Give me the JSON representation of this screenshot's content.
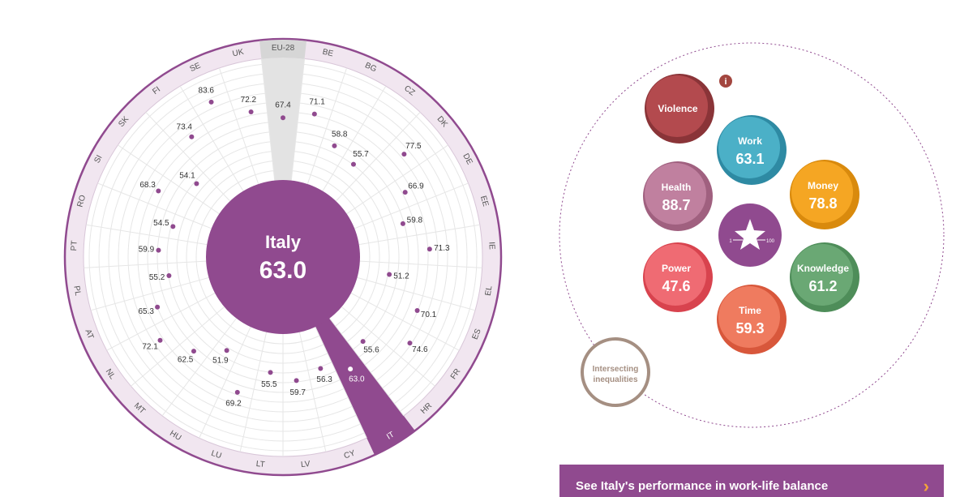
{
  "chart_data": [
    {
      "type": "radial-dot",
      "center": {
        "name": "Italy",
        "value": "63.0"
      },
      "highlight": "IT",
      "reference": "EU-28",
      "countries": [
        {
          "code": "EU-28",
          "value": 67.4
        },
        {
          "code": "BE",
          "value": 71.1
        },
        {
          "code": "BG",
          "value": 58.8
        },
        {
          "code": "CZ",
          "value": 55.7
        },
        {
          "code": "DK",
          "value": 77.5
        },
        {
          "code": "DE",
          "value": 66.9
        },
        {
          "code": "EE",
          "value": 59.8
        },
        {
          "code": "IE",
          "value": 71.3
        },
        {
          "code": "EL",
          "value": 51.2
        },
        {
          "code": "ES",
          "value": 70.1
        },
        {
          "code": "FR",
          "value": 74.6
        },
        {
          "code": "HR",
          "value": 55.6
        },
        {
          "code": "IT",
          "value": 63.0
        },
        {
          "code": "CY",
          "value": 56.3
        },
        {
          "code": "LV",
          "value": 59.7
        },
        {
          "code": "LT",
          "value": 55.5
        },
        {
          "code": "LU",
          "value": 69.2
        },
        {
          "code": "HU",
          "value": 51.9
        },
        {
          "code": "MT",
          "value": 62.5
        },
        {
          "code": "NL",
          "value": 72.1
        },
        {
          "code": "AT",
          "value": 65.3
        },
        {
          "code": "PL",
          "value": 55.2
        },
        {
          "code": "PT",
          "value": 59.9
        },
        {
          "code": "RO",
          "value": 54.5
        },
        {
          "code": "SI",
          "value": 68.3
        },
        {
          "code": "SK",
          "value": 54.1
        },
        {
          "code": "FI",
          "value": 73.4
        },
        {
          "code": "SE",
          "value": 83.6
        },
        {
          "code": "UK",
          "value": 72.2
        }
      ],
      "colors": {
        "accent": "#904a8f",
        "ring": "#f1e6f0",
        "reference": "#e3e3e3",
        "grid": "#e6e6e6"
      }
    },
    {
      "type": "bubble",
      "domains": [
        {
          "name": "Violence",
          "value": "",
          "color": "#b34a4e",
          "dark": "#8a3438"
        },
        {
          "name": "Work",
          "value": "63.1",
          "color": "#4bb0c7",
          "dark": "#2e8aa3"
        },
        {
          "name": "Health",
          "value": "88.7",
          "color": "#c0809f",
          "dark": "#a0607f"
        },
        {
          "name": "Money",
          "value": "78.8",
          "color": "#f5a623",
          "dark": "#d98a0d"
        },
        {
          "name": "Power",
          "value": "47.6",
          "color": "#ef6b73",
          "dark": "#d8434e"
        },
        {
          "name": "Knowledge",
          "value": "61.2",
          "color": "#6aa874",
          "dark": "#4e8d59"
        },
        {
          "name": "Time",
          "value": "59.3",
          "color": "#ef7b5f",
          "dark": "#d8573b"
        }
      ],
      "logo": {
        "min": "1",
        "max": "100",
        "color": "#904a8f"
      },
      "intersecting": {
        "label_line1": "Intersecting",
        "label_line2": "inequalities",
        "color": "#a58f82"
      },
      "info": {
        "glyph": "i",
        "color": "#a3463f"
      }
    }
  ],
  "bottom_bar": {
    "text": "See Italy's performance in work-life balance",
    "chevron": "›"
  }
}
